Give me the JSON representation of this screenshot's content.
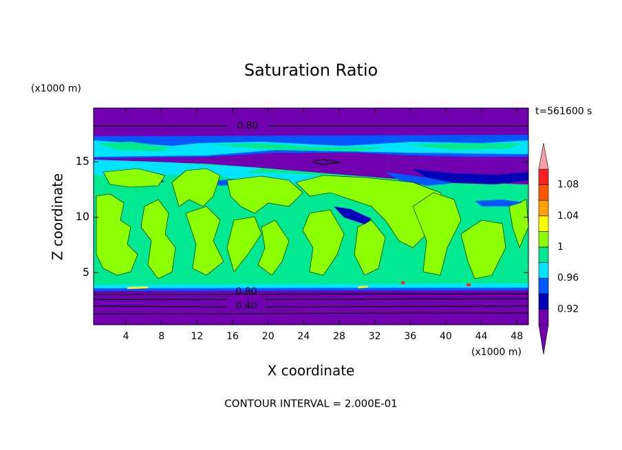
{
  "chart_data": {
    "type": "contour",
    "title": "Saturation Ratio",
    "xlabel": "X coordinate",
    "ylabel": "Z coordinate",
    "x_unit_label": "(x1000 m)",
    "y_unit_label": "(x1000 m)",
    "time_label": "t=561600 s",
    "footer": "CONTOUR INTERVAL = 2.000E-01",
    "xlim": [
      0.35,
      49.3
    ],
    "xticks": [
      4,
      8,
      12,
      16,
      20,
      24,
      28,
      32,
      36,
      40,
      44,
      48
    ],
    "ylim": [
      0.3,
      19.85
    ],
    "yticks": [
      5,
      10,
      15
    ],
    "levels": [
      0.9,
      0.92,
      0.94,
      0.96,
      0.98,
      1,
      1.02,
      1.04,
      1.06,
      1.08,
      1.1
    ],
    "colors": [
      "#7000b0",
      "#0000b8",
      "#0058ff",
      "#00e4ff",
      "#00e890",
      "#8cff00",
      "#ffff00",
      "#ffa000",
      "#ff5800",
      "#ff2020"
    ],
    "under_color": "#7000b0",
    "over_color": "#f4a0a0",
    "colorbar_ticks": [
      0.92,
      0.96,
      1,
      1.04,
      1.08
    ],
    "contour_labels": [
      {
        "value": 0.8,
        "label": "0.80"
      },
      {
        "value": 0.8,
        "label": "0.80"
      },
      {
        "value": 0.4,
        "label": "0.40"
      }
    ]
  }
}
